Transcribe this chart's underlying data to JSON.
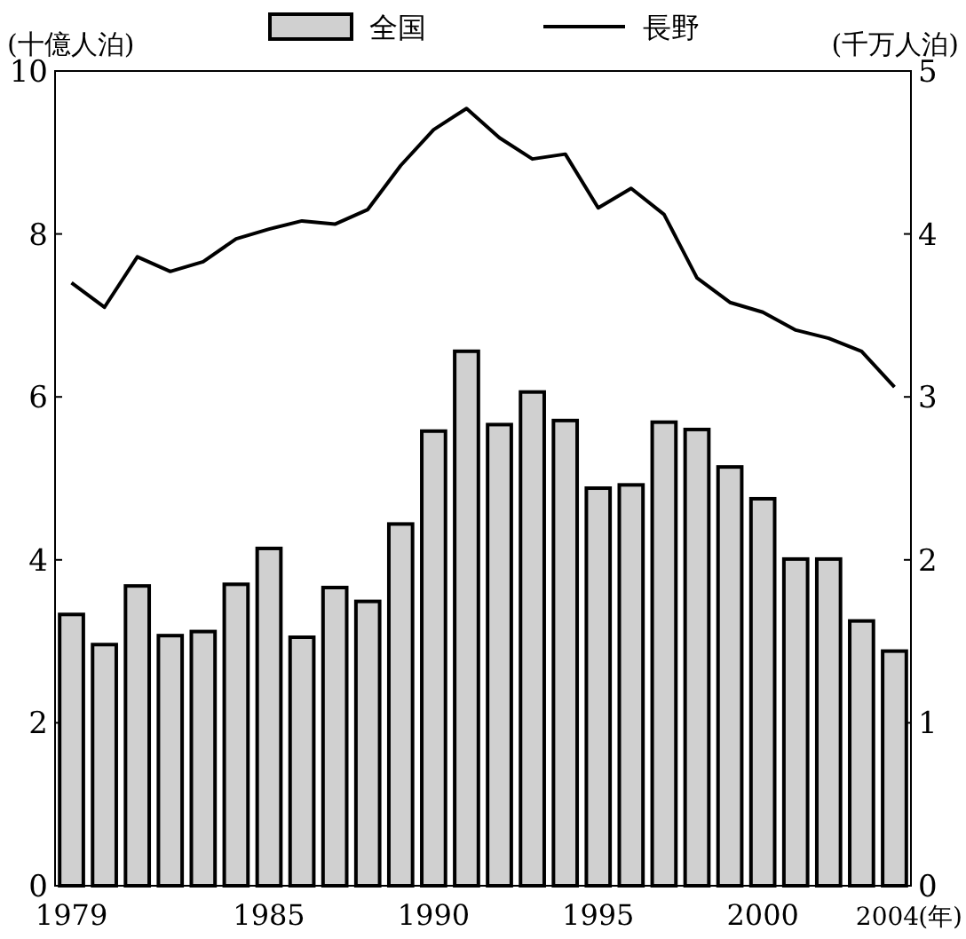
{
  "chart_data": {
    "type": "bar",
    "categories": [
      "1979",
      null,
      null,
      null,
      null,
      null,
      "1985",
      null,
      null,
      null,
      null,
      "1990",
      null,
      null,
      null,
      null,
      "1995",
      null,
      null,
      null,
      null,
      "2000",
      null,
      null,
      null,
      "2004"
    ],
    "xlabel": "(年)",
    "ylabel": "(十億人泊)",
    "y2label": "(千万人泊)",
    "series": [
      {
        "name": "全国",
        "color": "#d0d0d0",
        "values": [
          3.33,
          2.96,
          3.68,
          3.07,
          3.12,
          3.7,
          4.14,
          3.05,
          3.66,
          3.49,
          4.44,
          5.58,
          6.56,
          5.66,
          6.06,
          5.71,
          4.88,
          4.92,
          5.69,
          5.6,
          5.14,
          4.75,
          4.01,
          4.01,
          3.25,
          2.88
        ]
      },
      {
        "name": "長野",
        "type": "line",
        "axis": "y2",
        "color": "#000000",
        "values": [
          3.7,
          3.55,
          3.86,
          3.77,
          3.83,
          3.97,
          4.03,
          4.08,
          4.06,
          4.15,
          4.42,
          4.64,
          4.77,
          4.59,
          4.46,
          4.49,
          4.16,
          4.28,
          4.12,
          3.73,
          3.58,
          3.52,
          3.41,
          3.36,
          3.28,
          3.06
        ]
      }
    ],
    "ylim": [
      0,
      10
    ],
    "yticks": [
      0,
      2,
      4,
      6,
      8,
      10
    ],
    "y2lim": [
      0,
      5
    ],
    "y2ticks": [
      0,
      1,
      2,
      3,
      4,
      5
    ],
    "legend": "top",
    "grid": false,
    "line_style": "solid",
    "marker": "none"
  }
}
